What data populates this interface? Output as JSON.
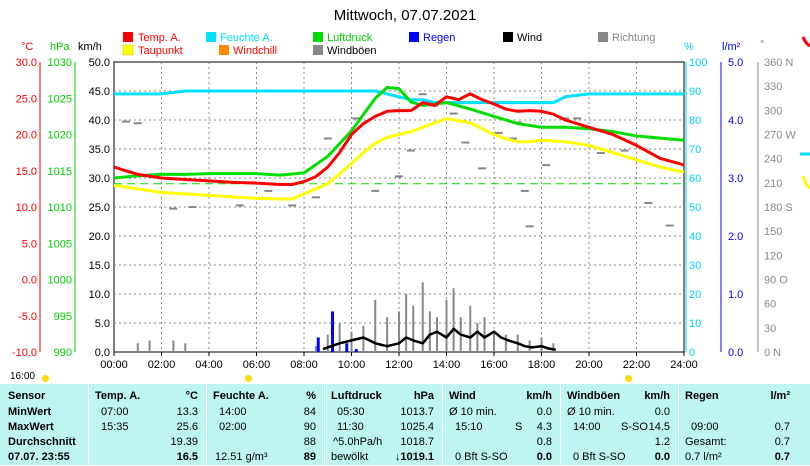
{
  "title": "Mittwoch, 07.07.2021",
  "units": {
    "temp": "°C",
    "press": "hPa",
    "wind": "km/h",
    "hum": "%",
    "rain": "l/m²",
    "dir": "°"
  },
  "legend": [
    {
      "label": "Temp. A.",
      "color": "#ff0000"
    },
    {
      "label": "Feuchte A.",
      "color": "#00e0ff"
    },
    {
      "label": "Luftdruck",
      "color": "#00dd00"
    },
    {
      "label": "Regen",
      "color": "#0000ff"
    },
    {
      "label": "Wind",
      "color": "#000000"
    },
    {
      "label": "Richtung",
      "color": "#888888"
    },
    {
      "label": "Taupunkt",
      "color": "#ffff00"
    },
    {
      "label": "Windchill",
      "color": "#ff8800"
    },
    {
      "label": "Windböen",
      "color": "#888888"
    }
  ],
  "chart_data": {
    "type": "line",
    "title": "Mittwoch, 07.07.2021",
    "x_ticks": [
      "00:00",
      "02:00",
      "04:00",
      "06:00",
      "08:00",
      "10:00",
      "12:00",
      "14:00",
      "16:00",
      "18:00",
      "20:00",
      "22:00",
      "24:00"
    ],
    "axes": {
      "temp": {
        "unit": "°C",
        "min": -10,
        "max": 30,
        "ticks": [
          "30.0",
          "25.0",
          "20.0",
          "15.0",
          "10.0",
          "5.0",
          "0.0",
          "-5.0",
          "-10.0"
        ]
      },
      "press": {
        "unit": "hPa",
        "min": 990,
        "max": 1030,
        "ticks": [
          "1030",
          "1025",
          "1020",
          "1015",
          "1010",
          "1005",
          "1000",
          "995",
          "990"
        ]
      },
      "wind": {
        "unit": "km/h",
        "min": 0,
        "max": 50,
        "ticks": [
          "50.0",
          "45.0",
          "40.0",
          "35.0",
          "30.0",
          "25.0",
          "20.0",
          "15.0",
          "10.0",
          "5.0",
          "0.0"
        ]
      },
      "hum": {
        "unit": "%",
        "min": 0,
        "max": 100,
        "ticks": [
          "100",
          "90",
          "80",
          "70",
          "60",
          "50",
          "40",
          "30",
          "20",
          "10",
          "0"
        ]
      },
      "rain": {
        "unit": "l/m²",
        "min": 0,
        "max": 5,
        "ticks": [
          "5.0",
          "4.0",
          "3.0",
          "2.0",
          "1.0",
          "0.0"
        ]
      },
      "dir": {
        "unit": "°",
        "ticks": [
          "360 N",
          "330",
          "300",
          "270 W",
          "240",
          "210",
          "180 S",
          "150",
          "120",
          "90 O",
          "60",
          "30",
          "0 N"
        ]
      }
    },
    "reference_line": {
      "axis": "hum",
      "value": 58,
      "color": "#00dd00"
    },
    "series": [
      {
        "name": "Temp. A.",
        "axis": "temp",
        "color": "#ff0000",
        "x": [
          0,
          1,
          2,
          3,
          4,
          5,
          6,
          7,
          7.5,
          8,
          8.5,
          9,
          9.5,
          10,
          10.5,
          11,
          11.5,
          12,
          12.5,
          13,
          13.5,
          14,
          14.5,
          15,
          15.5,
          16,
          16.5,
          17,
          17.5,
          18,
          18.5,
          19,
          20,
          21,
          22,
          23,
          24
        ],
        "y": [
          15.5,
          14.5,
          14.0,
          13.8,
          13.6,
          13.4,
          13.3,
          13.1,
          13.1,
          13.5,
          14.2,
          15.5,
          17.5,
          20.0,
          21.5,
          22.5,
          23.2,
          23.3,
          23.3,
          24.4,
          24.0,
          25.2,
          24.8,
          25.6,
          24.8,
          24.2,
          23.5,
          23.2,
          23.3,
          23.2,
          22.8,
          22.0,
          21.0,
          20.0,
          18.5,
          16.7,
          15.8
        ]
      },
      {
        "name": "Feuchte A.",
        "axis": "hum",
        "color": "#00e0ff",
        "x": [
          0,
          1,
          2,
          3,
          4,
          5,
          6,
          7,
          8,
          9,
          10,
          11,
          11.5,
          12,
          12.5,
          13,
          13.5,
          14,
          14.5,
          15,
          15.5,
          16,
          16.5,
          17,
          17.5,
          18,
          18.5,
          19,
          20,
          21,
          22,
          23,
          24
        ],
        "y": [
          89,
          89,
          89,
          90,
          90,
          90,
          90,
          90,
          90,
          90,
          90,
          90,
          89,
          88,
          87,
          87,
          86,
          86,
          86,
          86,
          86,
          86,
          86,
          86,
          86,
          86,
          86,
          88,
          89,
          89,
          89,
          89,
          89
        ]
      },
      {
        "name": "Luftdruck",
        "axis": "press",
        "color": "#00dd00",
        "x": [
          0,
          1,
          2,
          3,
          4,
          5,
          6,
          7,
          8,
          9,
          10,
          11,
          11.5,
          12,
          12.5,
          13,
          14,
          15,
          16,
          17,
          18,
          19,
          20,
          21,
          22,
          23,
          24
        ],
        "y": [
          1014.0,
          1014.3,
          1014.5,
          1014.5,
          1014.6,
          1014.6,
          1014.6,
          1014.4,
          1014.7,
          1017.0,
          1020.5,
          1025.0,
          1026.5,
          1026.3,
          1024.5,
          1024.0,
          1024.4,
          1023.5,
          1022.5,
          1021.5,
          1021.0,
          1021.0,
          1020.8,
          1020.4,
          1019.8,
          1019.5,
          1019.2
        ]
      },
      {
        "name": "Taupunkt",
        "axis": "temp",
        "color": "#ffff00",
        "x": [
          0,
          1,
          2,
          3,
          4,
          5,
          6,
          7,
          7.5,
          8,
          9,
          10,
          10.5,
          11,
          11.5,
          12,
          12.5,
          13,
          14,
          15,
          15.5,
          16,
          16.5,
          17,
          17.5,
          18,
          19,
          20,
          21,
          22,
          23,
          24
        ],
        "y": [
          13.0,
          12.5,
          12.0,
          11.8,
          11.6,
          11.4,
          11.2,
          11.1,
          11.1,
          11.8,
          13.2,
          16.0,
          17.5,
          18.8,
          19.6,
          20.0,
          20.4,
          21.0,
          22.2,
          21.6,
          20.8,
          20.0,
          19.4,
          19.0,
          19.0,
          19.2,
          19.0,
          18.5,
          17.5,
          16.5,
          15.5,
          14.8
        ]
      },
      {
        "name": "Wind",
        "axis": "wind",
        "color": "#000000",
        "x": [
          8.8,
          9.5,
          10,
          10.5,
          11,
          11.5,
          12,
          12.3,
          12.6,
          13,
          13.3,
          13.6,
          14,
          14.3,
          14.6,
          15,
          15.3,
          15.6,
          16,
          16.3,
          16.6,
          17,
          17.3,
          17.6,
          18,
          18.3,
          18.6
        ],
        "y": [
          0.5,
          1.5,
          2.0,
          2.5,
          1.5,
          1.0,
          1.5,
          2.5,
          2.0,
          1.5,
          3.0,
          3.5,
          2.5,
          4.0,
          3.0,
          2.5,
          3.5,
          2.5,
          3.5,
          2.5,
          2.0,
          1.5,
          1.0,
          0.8,
          1.0,
          0.6,
          0.4
        ]
      },
      {
        "name": "Windböen",
        "axis": "wind",
        "color": "#888888",
        "x": [
          1,
          1.5,
          2.5,
          3,
          8.5,
          9,
          9.5,
          10,
          10.5,
          11,
          11.5,
          12,
          12.3,
          12.6,
          13,
          13.3,
          13.6,
          14,
          14.3,
          14.6,
          15,
          15.3,
          15.6,
          16,
          16.5,
          17,
          17.5,
          18,
          18.5
        ],
        "y": [
          1.5,
          2.0,
          2.0,
          1.5,
          1.0,
          3.0,
          5.0,
          3.5,
          4.5,
          9.0,
          6.0,
          7.0,
          10.0,
          8.0,
          12.0,
          7.0,
          6.0,
          9.0,
          11.0,
          6.0,
          8.0,
          5.0,
          6.0,
          3.5,
          3.0,
          3.0,
          2.0,
          2.5,
          1.5
        ]
      },
      {
        "name": "Regen",
        "axis": "rain",
        "color": "#0000ff",
        "x": [
          8.6,
          9.2,
          9.8,
          10.2
        ],
        "y": [
          0.25,
          0.7,
          0.15,
          0.05
        ]
      },
      {
        "name": "Richtung",
        "axis": "dir",
        "color": "#888888",
        "x": [
          0.5,
          1.0,
          2.5,
          3.3,
          5.3,
          6.5,
          7.5,
          8.5,
          9.0,
          10.2,
          11.0,
          12.0,
          12.5,
          13.0,
          13.5,
          14.3,
          14.8,
          15.5,
          16.2,
          16.8,
          17.0,
          17.3,
          17.5,
          18.2,
          19.0,
          19.5,
          20.5,
          21.5,
          22.5,
          23.4
        ],
        "y": [
          286,
          284,
          178,
          180,
          182,
          200,
          182,
          192,
          265,
          290,
          200,
          218,
          250,
          320,
          306,
          296,
          260,
          228,
          272,
          265,
          285,
          200,
          156,
          232,
          290,
          290,
          247,
          250,
          185,
          157
        ]
      }
    ]
  },
  "sunbar": {
    "time": "16:00"
  },
  "stats": {
    "headers": {
      "sensor": "Sensor",
      "temp": "Temp. A.",
      "temp_u": "°C",
      "hum": "Feuchte A.",
      "hum_u": "%",
      "press": "Luftdruck",
      "press_u": "hPa",
      "wind": "Wind",
      "wind_u": "km/h",
      "gust": "Windböen",
      "gust_u": "km/h",
      "rain": "Regen",
      "rain_u": "l/m²"
    },
    "rows": [
      {
        "label": "MinWert",
        "temp_t": "07:00",
        "temp_v": "13.3",
        "hum_t": "14:00",
        "hum_v": "84",
        "press_t": "05:30",
        "press_v": "1013.7",
        "wind_t": "Ø 10 min.",
        "wind_d": "",
        "wind_v": "0.0",
        "gust_t": "Ø 10 min.",
        "gust_d": "",
        "gust_v": "0.0",
        "rain_t": "",
        "rain_v": ""
      },
      {
        "label": "MaxWert",
        "temp_t": "15:35",
        "temp_v": "25.6",
        "hum_t": "02:00",
        "hum_v": "90",
        "press_t": "11:30",
        "press_v": "1025.4",
        "wind_t": "15:10",
        "wind_d": "S",
        "wind_v": "4.3",
        "gust_t": "14:00",
        "gust_d": "S-SO",
        "gust_v": "14.5",
        "rain_t": "09:00",
        "rain_v": "0.7"
      },
      {
        "label": "Durchschnitt",
        "temp_t": "",
        "temp_v": "19.39",
        "hum_t": "",
        "hum_v": "88",
        "press_t": "^5.0hPa/h",
        "press_v": "1018.7",
        "wind_t": "",
        "wind_d": "",
        "wind_v": "0.8",
        "gust_t": "",
        "gust_d": "",
        "gust_v": "1.2",
        "rain_t": "Gesamt:",
        "rain_v": "0.7"
      },
      {
        "label": "07.07. 23:55",
        "temp_t": "",
        "temp_v": "16.5",
        "hum_t": "12.51 g/m³",
        "hum_v": "89",
        "press_t": "bewölkt",
        "press_v": "↓1019.1",
        "wind_t": "0 Bft S-SO",
        "wind_d": "",
        "wind_v": "0.0",
        "gust_t": "0 Bft S-SO",
        "gust_d": "",
        "gust_v": "0.0",
        "rain_t": "0.7 l/m²",
        "rain_v": "0.7"
      }
    ]
  }
}
